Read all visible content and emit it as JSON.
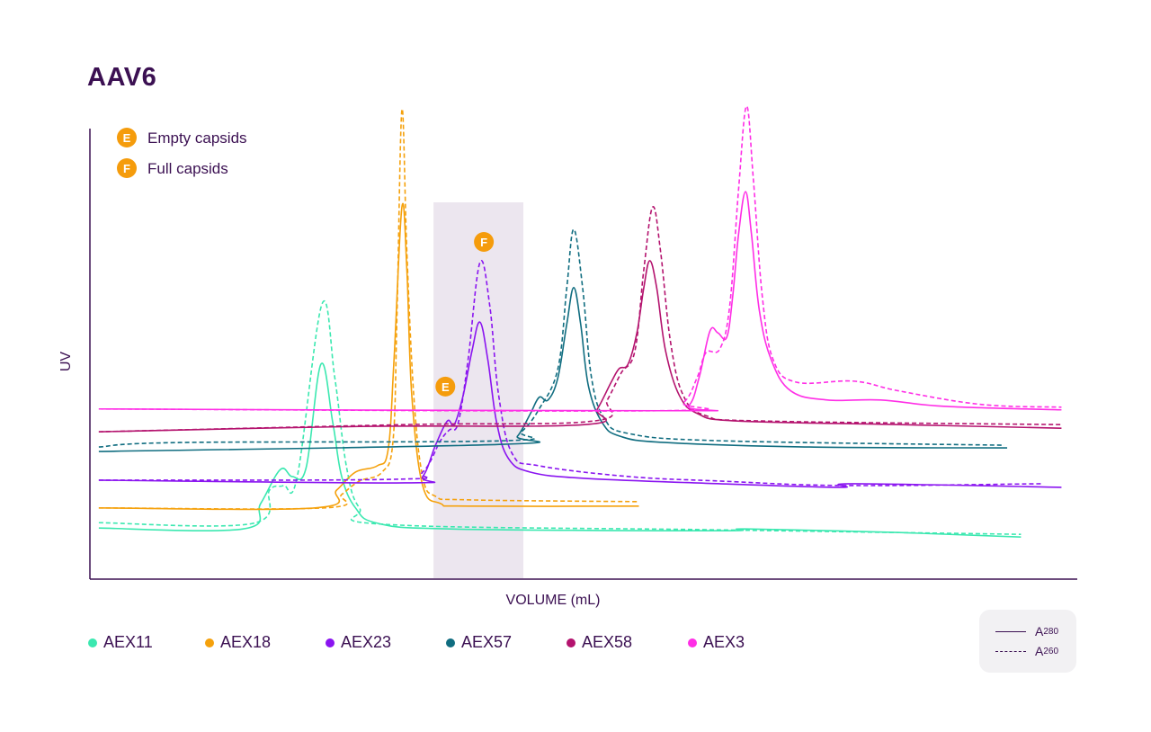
{
  "chart_data": {
    "type": "line",
    "title": "AAV6",
    "xlabel": "VOLUME (mL)",
    "ylabel": "UV",
    "xlim": [
      0,
      100
    ],
    "ylim": [
      0,
      100
    ],
    "grid": false,
    "ticks": false,
    "legend_placement": "bottom",
    "shaded_region": {
      "x": [
        34.8,
        43.9
      ],
      "color": "#ece6ef"
    },
    "annotation_legend": [
      {
        "marker": "E",
        "label": "Empty capsids"
      },
      {
        "marker": "F",
        "label": "Full capsids"
      }
    ],
    "annotations": [
      {
        "marker": "E",
        "x": 36.0,
        "y": 42.8
      },
      {
        "marker": "F",
        "x": 39.9,
        "y": 75.1
      }
    ],
    "annotation_color": "#f59c0c",
    "line_styles": [
      {
        "style": "solid",
        "label": "A",
        "subscript": "280"
      },
      {
        "style": "dashed",
        "label": "A",
        "subscript": "260"
      }
    ],
    "series": [
      {
        "name": "AEX11",
        "color": "#3be8b0",
        "A280": [
          [
            0.9,
            11.2
          ],
          [
            15.5,
            11.0
          ],
          [
            17.3,
            16.7
          ],
          [
            19.3,
            24.3
          ],
          [
            20.5,
            22.7
          ],
          [
            21.9,
            24.7
          ],
          [
            23.4,
            47.8
          ],
          [
            24.6,
            34.7
          ],
          [
            25.5,
            22.7
          ],
          [
            26.9,
            15.7
          ],
          [
            29.1,
            12.3
          ],
          [
            36.4,
            11.0
          ],
          [
            63.8,
            10.6
          ],
          [
            66.5,
            11.0
          ],
          [
            82.0,
            10.2
          ],
          [
            94.3,
            9.2
          ]
        ],
        "A260": [
          [
            0.9,
            12.4
          ],
          [
            16.4,
            12.2
          ],
          [
            18.2,
            19.7
          ],
          [
            19.6,
            20.7
          ],
          [
            21.0,
            22.7
          ],
          [
            23.5,
            61.2
          ],
          [
            24.8,
            44.8
          ],
          [
            26.0,
            24.7
          ],
          [
            27.3,
            15.7
          ],
          [
            30.1,
            12.0
          ],
          [
            63.8,
            10.8
          ],
          [
            94.3,
            9.8
          ]
        ]
      },
      {
        "name": "AEX18",
        "color": "#f5a10c",
        "A280": [
          [
            0.9,
            15.7
          ],
          [
            22.8,
            15.7
          ],
          [
            25.0,
            19.7
          ],
          [
            26.9,
            23.7
          ],
          [
            29.1,
            25.1
          ],
          [
            30.2,
            28.7
          ],
          [
            30.8,
            48.8
          ],
          [
            31.6,
            82.9
          ],
          [
            32.1,
            68.9
          ],
          [
            32.6,
            40.8
          ],
          [
            33.7,
            20.7
          ],
          [
            35.5,
            16.7
          ],
          [
            38.3,
            16.1
          ],
          [
            55.6,
            16.1
          ]
        ],
        "A260": [
          [
            0.9,
            15.7
          ],
          [
            23.7,
            15.7
          ],
          [
            25.5,
            18.7
          ],
          [
            27.3,
            21.7
          ],
          [
            29.6,
            23.7
          ],
          [
            30.7,
            30.7
          ],
          [
            31.1,
            58.8
          ],
          [
            31.6,
            104.6
          ],
          [
            32.1,
            72.9
          ],
          [
            32.8,
            40.8
          ],
          [
            33.7,
            22.7
          ],
          [
            35.0,
            18.3
          ],
          [
            38.3,
            17.5
          ],
          [
            55.6,
            17.1
          ]
        ]
      },
      {
        "name": "AEX23",
        "color": "#8a14f0",
        "A280": [
          [
            0.9,
            21.9
          ],
          [
            31.9,
            21.3
          ],
          [
            33.7,
            22.7
          ],
          [
            35.0,
            29.7
          ],
          [
            36.2,
            35.1
          ],
          [
            36.9,
            34.3
          ],
          [
            37.8,
            40.8
          ],
          [
            38.7,
            50.8
          ],
          [
            39.5,
            57.2
          ],
          [
            40.3,
            48.8
          ],
          [
            41.2,
            34.7
          ],
          [
            42.4,
            26.7
          ],
          [
            44.6,
            23.7
          ],
          [
            50.1,
            22.3
          ],
          [
            63.8,
            21.1
          ],
          [
            76.0,
            20.3
          ],
          [
            77.4,
            21.1
          ],
          [
            98.4,
            20.3
          ]
        ],
        "A260": [
          [
            0.9,
            21.9
          ],
          [
            31.0,
            22.1
          ],
          [
            33.7,
            23.7
          ],
          [
            35.5,
            30.7
          ],
          [
            36.4,
            33.1
          ],
          [
            37.3,
            34.7
          ],
          [
            38.3,
            48.8
          ],
          [
            39.5,
            70.5
          ],
          [
            40.5,
            60.8
          ],
          [
            41.4,
            40.8
          ],
          [
            42.8,
            27.7
          ],
          [
            45.5,
            25.1
          ],
          [
            54.6,
            22.7
          ],
          [
            63.8,
            21.7
          ],
          [
            76.5,
            20.7
          ],
          [
            96.5,
            21.1
          ]
        ]
      },
      {
        "name": "AEX57",
        "color": "#106d80",
        "A280": [
          [
            0.9,
            28.3
          ],
          [
            41.9,
            29.9
          ],
          [
            43.3,
            31.7
          ],
          [
            44.6,
            36.7
          ],
          [
            45.5,
            40.4
          ],
          [
            46.4,
            39.8
          ],
          [
            47.4,
            44.8
          ],
          [
            48.3,
            56.8
          ],
          [
            49.0,
            64.9
          ],
          [
            49.7,
            56.8
          ],
          [
            50.5,
            42.8
          ],
          [
            51.9,
            34.7
          ],
          [
            53.7,
            31.7
          ],
          [
            58.3,
            30.3
          ],
          [
            72.9,
            29.3
          ],
          [
            92.9,
            29.1
          ]
        ],
        "A260": [
          [
            0.9,
            29.3
          ],
          [
            9.1,
            30.3
          ],
          [
            41.9,
            30.7
          ],
          [
            43.7,
            32.7
          ],
          [
            45.5,
            37.8
          ],
          [
            47.4,
            46.8
          ],
          [
            48.3,
            64.9
          ],
          [
            49.0,
            77.9
          ],
          [
            49.9,
            64.9
          ],
          [
            50.8,
            44.8
          ],
          [
            52.1,
            35.7
          ],
          [
            54.6,
            32.3
          ],
          [
            63.8,
            30.7
          ],
          [
            92.6,
            29.7
          ]
        ]
      },
      {
        "name": "AEX58",
        "color": "#b4136e",
        "A280": [
          [
            0.9,
            32.7
          ],
          [
            27.3,
            33.9
          ],
          [
            50.1,
            34.3
          ],
          [
            51.4,
            37.8
          ],
          [
            52.8,
            43.8
          ],
          [
            53.6,
            46.8
          ],
          [
            54.5,
            47.8
          ],
          [
            55.4,
            54.8
          ],
          [
            56.1,
            64.9
          ],
          [
            56.7,
            70.9
          ],
          [
            57.4,
            64.9
          ],
          [
            58.3,
            50.8
          ],
          [
            59.7,
            40.8
          ],
          [
            61.6,
            36.7
          ],
          [
            65.6,
            35.1
          ],
          [
            82.0,
            34.3
          ],
          [
            98.4,
            33.5
          ]
        ],
        "A260": [
          [
            0.9,
            32.7
          ],
          [
            31.9,
            34.3
          ],
          [
            51.0,
            35.1
          ],
          [
            52.4,
            39.8
          ],
          [
            53.8,
            45.8
          ],
          [
            55.2,
            50.8
          ],
          [
            56.1,
            68.9
          ],
          [
            57.0,
            82.9
          ],
          [
            57.8,
            72.9
          ],
          [
            58.8,
            52.8
          ],
          [
            60.1,
            40.8
          ],
          [
            62.4,
            36.3
          ],
          [
            68.3,
            35.1
          ],
          [
            98.4,
            34.3
          ]
        ]
      },
      {
        "name": "AEX3",
        "color": "#ff2ee6",
        "A280": [
          [
            0.9,
            37.8
          ],
          [
            58.3,
            37.4
          ],
          [
            60.6,
            38.4
          ],
          [
            61.7,
            44.8
          ],
          [
            62.8,
            55.2
          ],
          [
            63.6,
            54.8
          ],
          [
            64.5,
            53.8
          ],
          [
            65.1,
            62.9
          ],
          [
            65.7,
            76.9
          ],
          [
            66.4,
            86.3
          ],
          [
            67.0,
            76.9
          ],
          [
            67.8,
            59.8
          ],
          [
            69.0,
            48.8
          ],
          [
            71.0,
            41.8
          ],
          [
            74.7,
            39.8
          ],
          [
            80.1,
            39.8
          ],
          [
            86.5,
            38.4
          ],
          [
            98.4,
            37.6
          ]
        ],
        "A260": [
          [
            0.9,
            37.8
          ],
          [
            57.4,
            37.4
          ],
          [
            60.1,
            39.2
          ],
          [
            61.5,
            44.8
          ],
          [
            62.4,
            50.4
          ],
          [
            63.8,
            51.2
          ],
          [
            64.8,
            60.8
          ],
          [
            65.7,
            86.9
          ],
          [
            66.5,
            105.4
          ],
          [
            67.2,
            88.9
          ],
          [
            68.1,
            62.9
          ],
          [
            69.2,
            48.8
          ],
          [
            71.5,
            43.8
          ],
          [
            77.4,
            44.0
          ],
          [
            82.0,
            41.8
          ],
          [
            90.3,
            38.8
          ],
          [
            98.4,
            38.2
          ]
        ]
      }
    ]
  }
}
